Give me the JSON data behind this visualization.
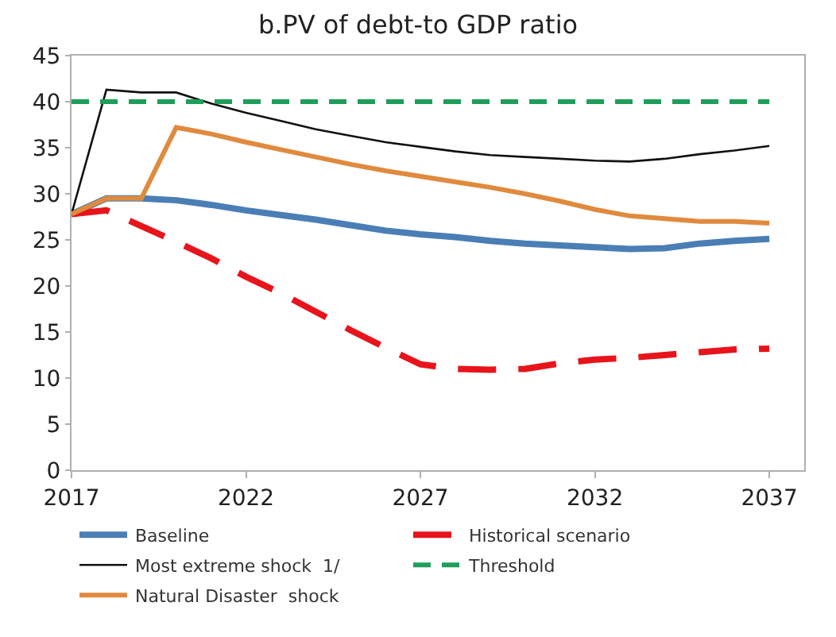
{
  "chart_data": {
    "type": "line",
    "title": "b.PV of debt-to GDP ratio",
    "x": [
      2017,
      2018,
      2019,
      2020,
      2021,
      2022,
      2023,
      2024,
      2025,
      2026,
      2027,
      2028,
      2029,
      2030,
      2031,
      2032,
      2033,
      2034,
      2035,
      2036,
      2037
    ],
    "xlim": [
      2017,
      2038
    ],
    "xticks": [
      2017,
      2022,
      2027,
      2032,
      2037
    ],
    "ylim": [
      0,
      45
    ],
    "yticks": [
      0,
      5,
      10,
      15,
      20,
      25,
      30,
      35,
      40,
      45
    ],
    "legend": "bottom",
    "marker": "none",
    "series": [
      {
        "name": "Baseline",
        "color": "#4a7eb5",
        "line_style": "solid",
        "values": [
          27.8,
          29.5,
          29.5,
          29.3,
          28.8,
          28.2,
          27.7,
          27.2,
          26.6,
          26.0,
          25.6,
          25.3,
          24.9,
          24.6,
          24.4,
          24.2,
          24.0,
          24.1,
          24.6,
          24.9,
          25.1
        ]
      },
      {
        "name": "Historical scenario",
        "color": "#e8141b",
        "line_style": "dashed",
        "values": [
          27.8,
          28.2,
          26.5,
          24.8,
          23.0,
          21.0,
          19.2,
          17.2,
          15.2,
          13.3,
          11.5,
          11.0,
          10.9,
          11.0,
          11.6,
          12.0,
          12.2,
          12.5,
          12.8,
          13.1,
          13.2
        ]
      },
      {
        "name": "Most extreme shock  1/",
        "color": "#111111",
        "line_style": "solid",
        "values": [
          27.8,
          41.3,
          41.0,
          41.0,
          39.8,
          38.8,
          37.9,
          37.0,
          36.3,
          35.6,
          35.1,
          34.6,
          34.2,
          34.0,
          33.8,
          33.6,
          33.5,
          33.8,
          34.3,
          34.7,
          35.2
        ]
      },
      {
        "name": "Threshold",
        "color": "#1e9e5a",
        "line_style": "dashed",
        "values": [
          40,
          40,
          40,
          40,
          40,
          40,
          40,
          40,
          40,
          40,
          40,
          40,
          40,
          40,
          40,
          40,
          40,
          40,
          40,
          40,
          40
        ]
      },
      {
        "name": "Natural Disaster  shock",
        "color": "#e08a3e",
        "line_style": "solid",
        "values": [
          27.8,
          29.5,
          29.5,
          37.2,
          36.5,
          35.6,
          34.8,
          34.0,
          33.2,
          32.5,
          31.9,
          31.3,
          30.7,
          30.0,
          29.2,
          28.3,
          27.6,
          27.3,
          27.0,
          27.0,
          26.8
        ]
      }
    ]
  }
}
